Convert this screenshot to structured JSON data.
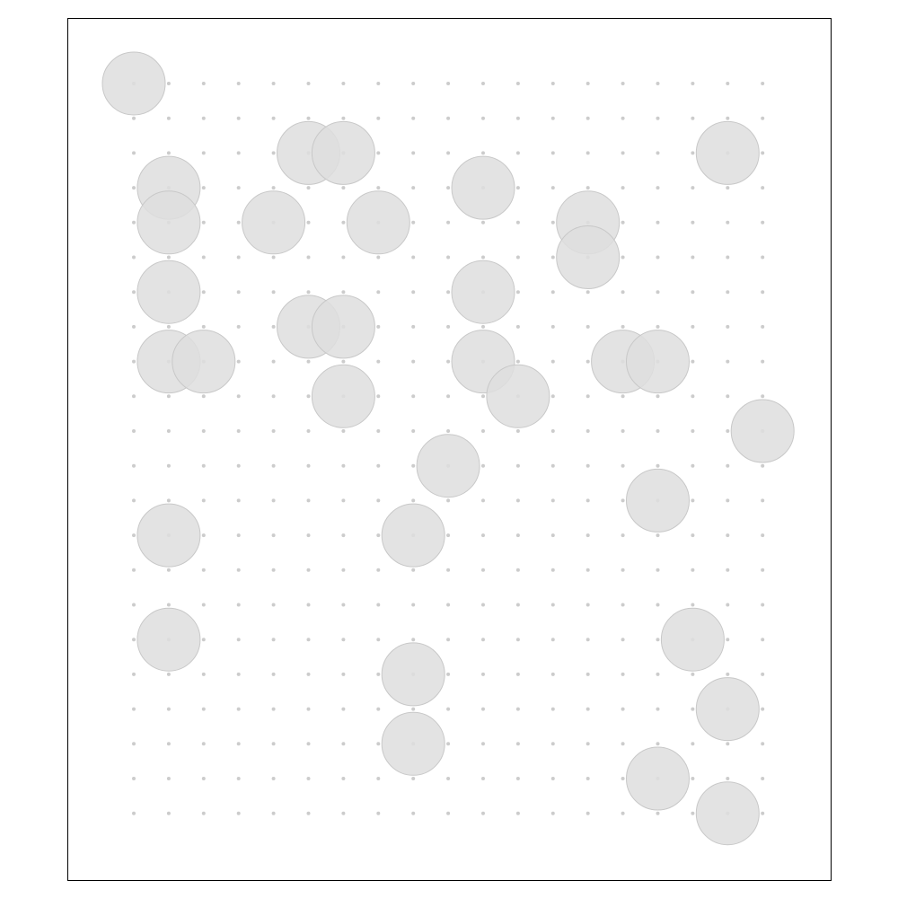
{
  "board": {
    "columns": 19,
    "rows": 22,
    "grid_color": "#cccccc",
    "token_fill": "#dedede",
    "token_stroke": "#c8c8c8",
    "frame_color": "#000000"
  },
  "tokens": [
    {
      "col": 0,
      "row": 0
    },
    {
      "col": 1,
      "row": 3
    },
    {
      "col": 1,
      "row": 4
    },
    {
      "col": 1,
      "row": 6
    },
    {
      "col": 1,
      "row": 8
    },
    {
      "col": 1,
      "row": 13
    },
    {
      "col": 1,
      "row": 16
    },
    {
      "col": 2,
      "row": 8
    },
    {
      "col": 4,
      "row": 4
    },
    {
      "col": 5,
      "row": 2
    },
    {
      "col": 5,
      "row": 7
    },
    {
      "col": 6,
      "row": 2
    },
    {
      "col": 6,
      "row": 7
    },
    {
      "col": 6,
      "row": 9
    },
    {
      "col": 7,
      "row": 4
    },
    {
      "col": 8,
      "row": 13
    },
    {
      "col": 8,
      "row": 17
    },
    {
      "col": 8,
      "row": 19
    },
    {
      "col": 9,
      "row": 11
    },
    {
      "col": 10,
      "row": 3
    },
    {
      "col": 10,
      "row": 6
    },
    {
      "col": 10,
      "row": 8
    },
    {
      "col": 11,
      "row": 9
    },
    {
      "col": 13,
      "row": 4
    },
    {
      "col": 13,
      "row": 5
    },
    {
      "col": 14,
      "row": 8
    },
    {
      "col": 15,
      "row": 8
    },
    {
      "col": 15,
      "row": 12
    },
    {
      "col": 15,
      "row": 20
    },
    {
      "col": 16,
      "row": 16
    },
    {
      "col": 17,
      "row": 2
    },
    {
      "col": 17,
      "row": 18
    },
    {
      "col": 17,
      "row": 21
    },
    {
      "col": 18,
      "row": 10
    }
  ]
}
